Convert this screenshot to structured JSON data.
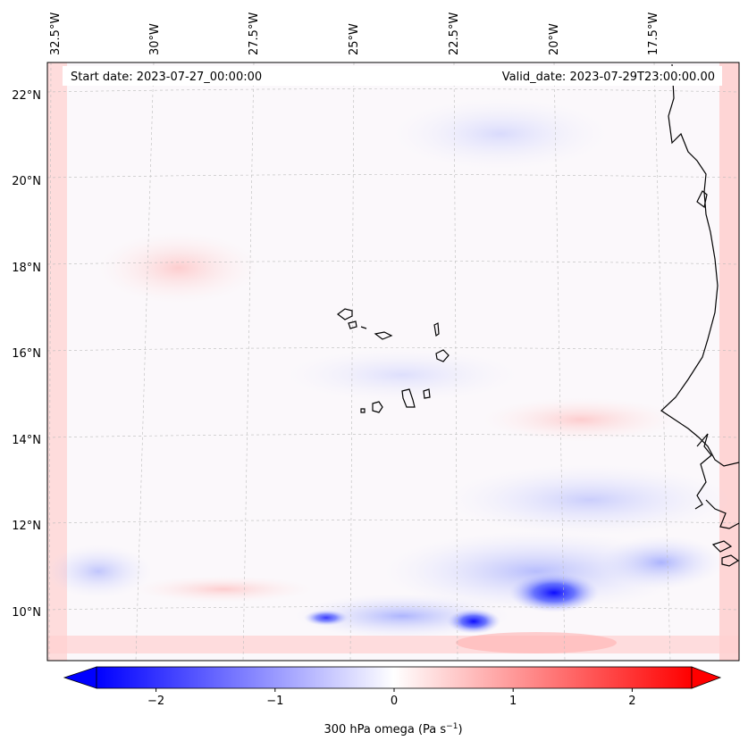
{
  "map": {
    "start_date_text": "Start date: 2023-07-27_00:00:00",
    "valid_date_text": "Valid_date: 2023-07-29T23:00:00.00",
    "longitude_labels": [
      "32.5°W",
      "30°W",
      "27.5°W",
      "25°W",
      "22.5°W",
      "20°W",
      "17.5°W"
    ],
    "latitude_labels": [
      "22°N",
      "20°N",
      "18°N",
      "16°N",
      "14°N",
      "12°N",
      "10°N"
    ],
    "longitudes_deg": [
      -32.5,
      -30,
      -27.5,
      -25,
      -22.5,
      -20,
      -17.5
    ],
    "latitudes_deg": [
      22,
      20,
      18,
      16,
      14,
      12,
      10
    ],
    "colors": {
      "negative": "#0000ff",
      "positive": "#ff0000",
      "neutral": "#ffffff",
      "coastline": "#000000",
      "gridline": "#bbbbbb"
    }
  },
  "colorbar": {
    "ticks": [
      -2,
      -1,
      0,
      1,
      2
    ],
    "tick_labels": [
      "−2",
      "−1",
      "0",
      "1",
      "2"
    ],
    "range": [
      -2.5,
      2.5
    ],
    "label_main": "300 hPa omega (Pa s",
    "label_sup": "−1",
    "label_close": ")"
  }
}
